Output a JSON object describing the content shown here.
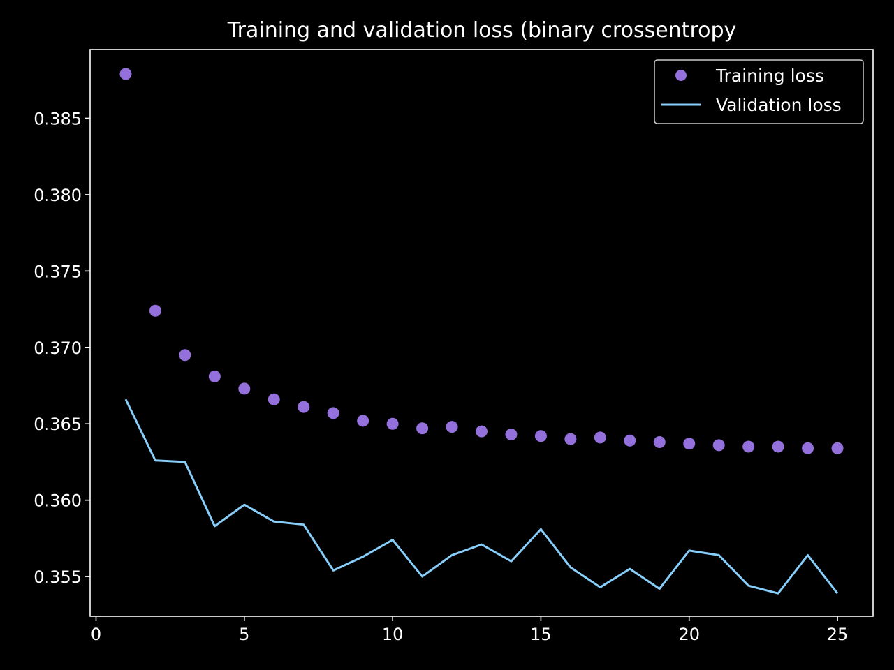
{
  "chart_data": {
    "type": "line",
    "title": "Training and validation loss (binary crossentropy",
    "xlabel": "",
    "ylabel": "",
    "x": [
      1,
      2,
      3,
      4,
      5,
      6,
      7,
      8,
      9,
      10,
      11,
      12,
      13,
      14,
      15,
      16,
      17,
      18,
      19,
      20,
      21,
      22,
      23,
      24,
      25
    ],
    "series": [
      {
        "name": "Training loss",
        "style": "dots",
        "color": "#9370db",
        "values": [
          0.3879,
          0.3724,
          0.3695,
          0.3681,
          0.3673,
          0.3666,
          0.3661,
          0.3657,
          0.3652,
          0.365,
          0.3647,
          0.3648,
          0.3645,
          0.3643,
          0.3642,
          0.364,
          0.3641,
          0.3639,
          0.3638,
          0.3637,
          0.3636,
          0.3635,
          0.3635,
          0.3634,
          0.3634
        ]
      },
      {
        "name": "Validation loss",
        "style": "line",
        "color": "#87cefa",
        "values": [
          0.3666,
          0.3626,
          0.3625,
          0.3583,
          0.3597,
          0.3586,
          0.3584,
          0.3554,
          0.3563,
          0.3574,
          0.355,
          0.3564,
          0.3571,
          0.356,
          0.3581,
          0.3556,
          0.3543,
          0.3555,
          0.3542,
          0.3567,
          0.3564,
          0.3544,
          0.3539,
          0.3564,
          0.3539
        ]
      }
    ],
    "xlim": [
      -0.2,
      26.2
    ],
    "ylim": [
      0.3524,
      0.3895
    ],
    "xticks": [
      0,
      5,
      10,
      15,
      20,
      25
    ],
    "xtick_labels": [
      "0",
      "5",
      "10",
      "15",
      "20",
      "25"
    ],
    "yticks": [
      0.355,
      0.36,
      0.365,
      0.37,
      0.375,
      0.38,
      0.385
    ],
    "ytick_labels": [
      "0.355",
      "0.360",
      "0.365",
      "0.370",
      "0.375",
      "0.380",
      "0.385"
    ],
    "grid": false,
    "legend_position": "top-right",
    "background_color": "#000000",
    "axes_color": "#ffffff"
  }
}
